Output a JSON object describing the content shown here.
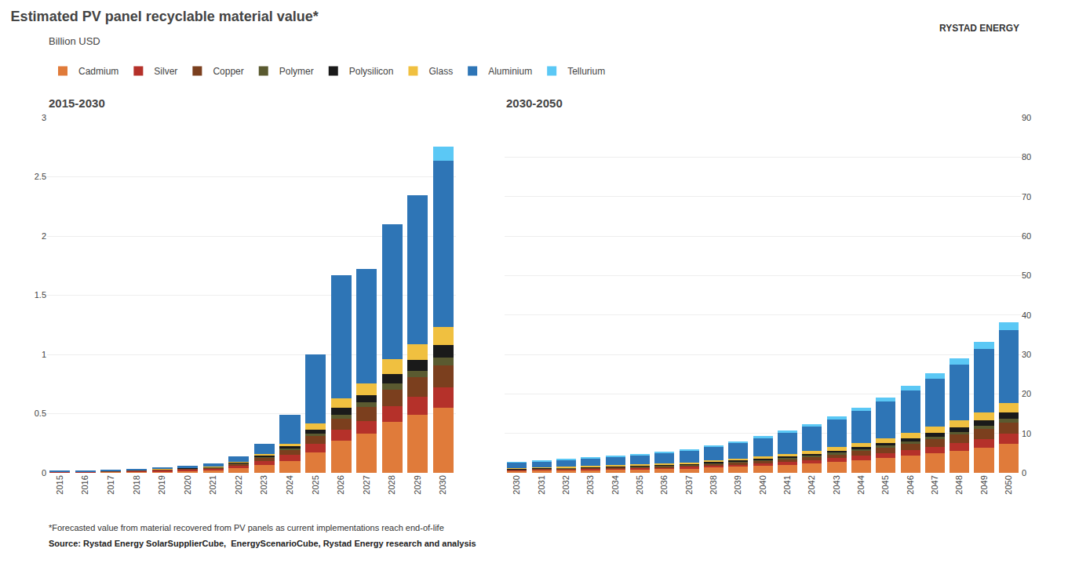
{
  "title": "Estimated PV panel recyclable material value*",
  "subtitle": "Billion USD",
  "annotations": [
    "*Forecasted value from material recovered from PV panels as current implementations reach end-of-life",
    "Source: Rystad Energy SolarSupplierCube,  EnergyScenarioCube, Rystad Energy research and analysis",
    "RYSTAD ENERGY"
  ],
  "chart_data": [
    {
      "type": "bar",
      "title": "2015-2030",
      "stacked": true,
      "grid": true,
      "legend": "top",
      "categories": [
        2015,
        2016,
        2017,
        2018,
        2019,
        2020,
        2021,
        2022,
        2023,
        2024,
        2025,
        2026,
        2027,
        2028,
        2029,
        2030
      ],
      "ylim": [
        0,
        3
      ],
      "yticks": [
        0,
        0.5,
        1,
        1.5,
        2,
        2.5,
        3
      ],
      "series": [
        {
          "name": "Cadmium",
          "color": "#e07b3a",
          "values": [
            0.005,
            0.005,
            0.007,
            0.01,
            0.013,
            0.018,
            0.022,
            0.038,
            0.065,
            0.1,
            0.17,
            0.27,
            0.33,
            0.43,
            0.49,
            0.55
          ]
        },
        {
          "name": "Silver",
          "color": "#b5312a",
          "values": [
            0.003,
            0.003,
            0.004,
            0.006,
            0.009,
            0.011,
            0.013,
            0.022,
            0.036,
            0.055,
            0.075,
            0.095,
            0.11,
            0.13,
            0.15,
            0.17
          ]
        },
        {
          "name": "Copper",
          "color": "#7b3f1e",
          "values": [
            0.002,
            0.002,
            0.003,
            0.004,
            0.005,
            0.007,
            0.009,
            0.015,
            0.025,
            0.038,
            0.065,
            0.095,
            0.115,
            0.145,
            0.165,
            0.19
          ]
        },
        {
          "name": "Polymer",
          "color": "#5a5a30",
          "values": [
            0.001,
            0.001,
            0.001,
            0.001,
            0.002,
            0.002,
            0.003,
            0.005,
            0.009,
            0.013,
            0.022,
            0.032,
            0.038,
            0.05,
            0.055,
            0.065
          ]
        },
        {
          "name": "Polysilicon",
          "color": "#1a1a1a",
          "values": [
            0.001,
            0.001,
            0.001,
            0.002,
            0.002,
            0.003,
            0.004,
            0.007,
            0.012,
            0.018,
            0.035,
            0.055,
            0.065,
            0.082,
            0.092,
            0.105
          ]
        },
        {
          "name": "Glass",
          "color": "#f0c040",
          "values": [
            0.001,
            0.001,
            0.001,
            0.002,
            0.003,
            0.004,
            0.005,
            0.007,
            0.012,
            0.018,
            0.05,
            0.085,
            0.095,
            0.12,
            0.135,
            0.155
          ]
        },
        {
          "name": "Aluminium",
          "color": "#2e75b6",
          "values": [
            0.003,
            0.003,
            0.004,
            0.006,
            0.009,
            0.013,
            0.022,
            0.045,
            0.085,
            0.25,
            0.58,
            1.04,
            0.97,
            1.14,
            1.26,
            1.4
          ]
        },
        {
          "name": "Tellurium",
          "color": "#5bc8f5",
          "values": [
            0.0,
            0.0,
            0.0,
            0.0,
            0.0,
            0.0,
            0.0,
            0.0,
            0.0,
            0.0,
            0.0,
            0.0,
            0.0,
            0.0,
            0.0,
            0.12
          ]
        }
      ]
    },
    {
      "type": "bar",
      "title": "2030-2050",
      "stacked": true,
      "grid": true,
      "categories": [
        2030,
        2031,
        2032,
        2033,
        2034,
        2035,
        2036,
        2037,
        2038,
        2039,
        2040,
        2041,
        2042,
        2043,
        2044,
        2045,
        2046,
        2047,
        2048,
        2049,
        2050
      ],
      "ylim": [
        0,
        90
      ],
      "yticks": [
        0,
        10,
        20,
        30,
        40,
        50,
        60,
        70,
        80,
        90
      ],
      "series": [
        {
          "name": "Cadmium",
          "color": "#e07b3a",
          "values": [
            0.55,
            0.62,
            0.69,
            0.77,
            0.85,
            0.93,
            1.03,
            1.18,
            1.37,
            1.57,
            1.82,
            2.07,
            2.41,
            2.8,
            3.24,
            3.74,
            4.33,
            4.93,
            5.62,
            6.42,
            7.4
          ]
        },
        {
          "name": "Silver",
          "color": "#b5312a",
          "values": [
            0.17,
            0.19,
            0.21,
            0.24,
            0.26,
            0.29,
            0.32,
            0.37,
            0.43,
            0.5,
            0.58,
            0.67,
            0.78,
            0.91,
            1.05,
            1.22,
            1.42,
            1.63,
            1.87,
            2.15,
            2.49
          ]
        },
        {
          "name": "Copper",
          "color": "#7b3f1e",
          "values": [
            0.19,
            0.21,
            0.24,
            0.26,
            0.29,
            0.32,
            0.36,
            0.42,
            0.49,
            0.57,
            0.66,
            0.77,
            0.9,
            1.05,
            1.22,
            1.42,
            1.65,
            1.9,
            2.19,
            2.52,
            2.92
          ]
        },
        {
          "name": "Polymer",
          "color": "#5a5a30",
          "values": [
            0.065,
            0.075,
            0.085,
            0.095,
            0.105,
            0.115,
            0.125,
            0.145,
            0.165,
            0.195,
            0.225,
            0.265,
            0.305,
            0.355,
            0.415,
            0.485,
            0.565,
            0.645,
            0.745,
            0.855,
            0.995
          ]
        },
        {
          "name": "Polysilicon",
          "color": "#1a1a1a",
          "values": [
            0.105,
            0.115,
            0.125,
            0.145,
            0.155,
            0.175,
            0.195,
            0.215,
            0.255,
            0.295,
            0.345,
            0.395,
            0.465,
            0.545,
            0.635,
            0.735,
            0.855,
            0.985,
            1.135,
            1.305,
            1.515
          ]
        },
        {
          "name": "Glass",
          "color": "#f0c040",
          "values": [
            0.155,
            0.175,
            0.195,
            0.215,
            0.235,
            0.265,
            0.295,
            0.345,
            0.405,
            0.465,
            0.545,
            0.635,
            0.735,
            0.855,
            0.995,
            1.155,
            1.345,
            1.545,
            1.775,
            2.035,
            2.355
          ]
        },
        {
          "name": "Aluminium",
          "color": "#2e75b6",
          "values": [
            1.4,
            1.55,
            1.73,
            1.93,
            2.15,
            2.4,
            2.67,
            3.05,
            3.5,
            4.0,
            4.6,
            5.3,
            6.1,
            7.0,
            8.05,
            9.25,
            10.65,
            12.2,
            14.0,
            16.05,
            18.45
          ]
        },
        {
          "name": "Tellurium",
          "color": "#5bc8f5",
          "values": [
            0.12,
            0.14,
            0.16,
            0.18,
            0.2,
            0.23,
            0.26,
            0.3,
            0.35,
            0.41,
            0.48,
            0.56,
            0.65,
            0.76,
            0.88,
            1.03,
            1.19,
            1.37,
            1.58,
            1.82,
            2.1
          ]
        }
      ]
    }
  ]
}
